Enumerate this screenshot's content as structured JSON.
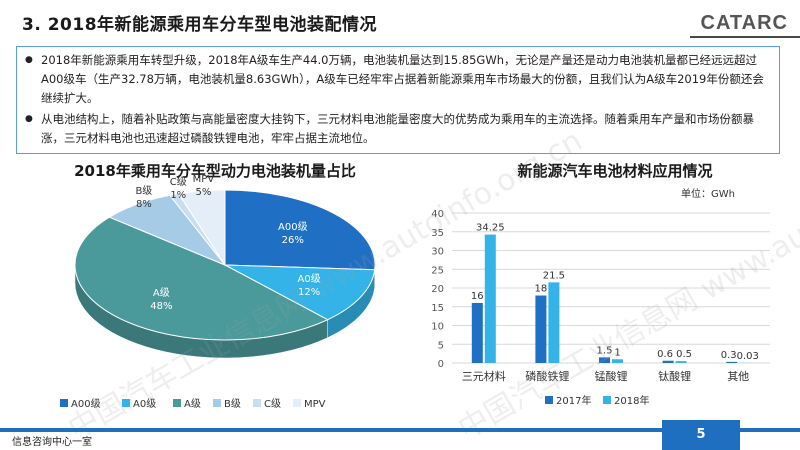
{
  "slide": {
    "title": "3. 2018年新能源乘用车分车型电池装配情况",
    "logo": "CATARC",
    "footer": "信息咨询中心一室",
    "page_number": "5",
    "watermark": "中国汽车工业信息网 www.autoinfo.org.cn"
  },
  "bullets": [
    "2018年新能源乘用车转型升级，2018年A级车生产44.0万辆，电池装机量达到15.85GWh，无论是产量还是动力电池装机量都已经远远超过A00级车（生产32.78万辆，电池装机量8.63GWh），A级车已经牢牢占据着新能源乘用车市场最大的份额，且我们认为A级车2019年份额还会继续扩大。",
    "从电池结构上，随着补贴政策与高能量密度大挂钩下，三元材料电池能量密度大的优势成为乘用车的主流选择。随着乘用车产量和市场份额暴涨，三元材料电池也迅速超过磷酸铁锂电池，牢牢占据主流地位。"
  ],
  "pie_chart": {
    "title": "2018年乘用车分车型动力电池装机量占比",
    "colors": {
      "A00级": "#1f6fc4",
      "A0级": "#33b3e8",
      "A级": "#4a9a9c",
      "B级": "#a6cbe7",
      "C级": "#c7dff0",
      "MPV": "#e3eef8"
    }
  },
  "bar_chart": {
    "title": "新能源汽车电池材料应用情况",
    "unit_label": "单位：GWh",
    "colors": {
      "2017年": "#1f6fc4",
      "2018年": "#33b3e8"
    }
  },
  "chart_data": [
    {
      "type": "pie",
      "title": "2018年乘用车分车型动力电池装机量占比",
      "categories": [
        "A00级",
        "A0级",
        "A级",
        "B级",
        "C级",
        "MPV"
      ],
      "values": [
        26,
        12,
        48,
        8,
        1,
        5
      ],
      "value_suffix": "%",
      "legend": "bottom"
    },
    {
      "type": "bar",
      "title": "新能源汽车电池材料应用情况",
      "ylabel": "单位：GWh",
      "categories": [
        "三元材料",
        "磷酸铁锂",
        "锰酸锂",
        "钛酸锂",
        "其他"
      ],
      "series": [
        {
          "name": "2017年",
          "values": [
            16,
            18,
            1.5,
            0.6,
            0.3
          ]
        },
        {
          "name": "2018年",
          "values": [
            34.25,
            21.5,
            1,
            0.5,
            0.03
          ]
        }
      ],
      "data_labels": [
        [
          "16",
          "18",
          "1.5",
          "0.6",
          "0.3"
        ],
        [
          "34.25",
          "21.5",
          "1",
          "0.5",
          "0.03"
        ]
      ],
      "ylim": [
        0,
        40
      ],
      "yticks": [
        0,
        5,
        10,
        15,
        20,
        25,
        30,
        35,
        40
      ],
      "grid": true,
      "legend": "bottom"
    }
  ]
}
